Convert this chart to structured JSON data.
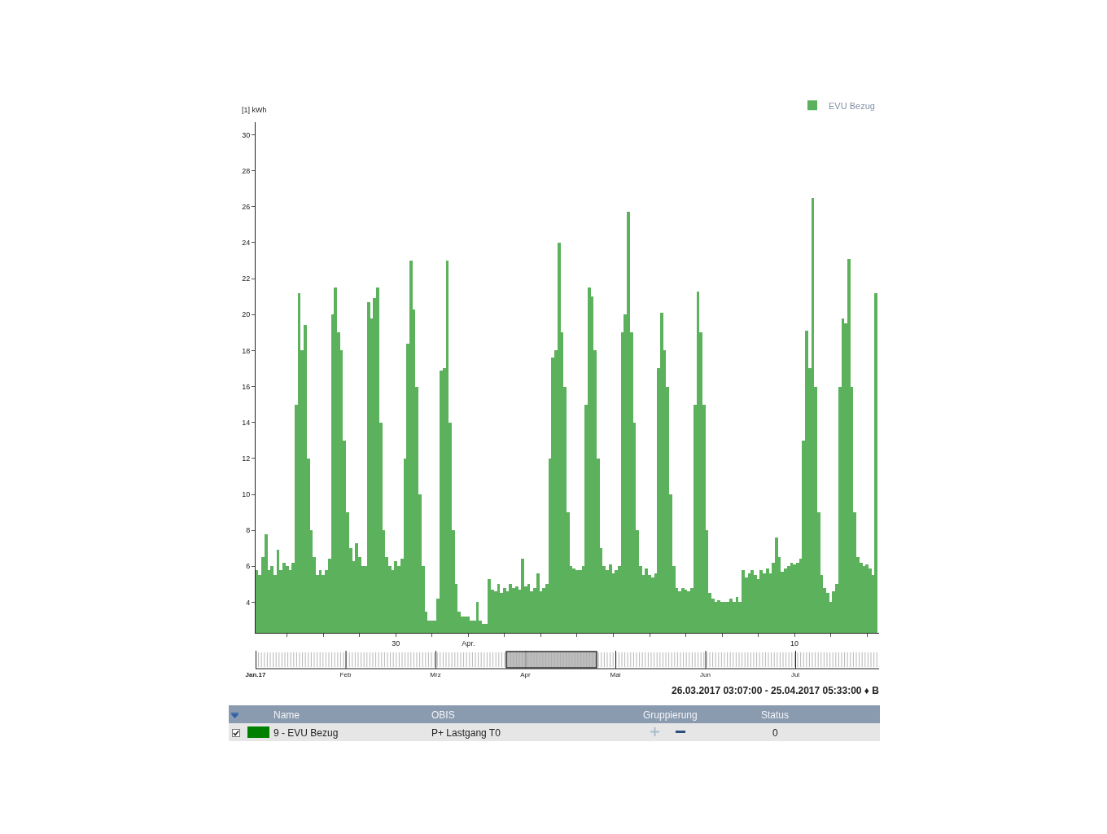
{
  "chart_data": [
    {
      "type": "bar",
      "ylabel": "[1] kWh",
      "legend": "top right",
      "ylim": [
        2.3,
        30.7
      ],
      "yticks": [
        4,
        6,
        8,
        10,
        12,
        14,
        16,
        18,
        20,
        22,
        24,
        26,
        28,
        30
      ],
      "xlim": [
        "2017-03-26T03:07",
        "2017-04-12T08:00"
      ],
      "xticks": [
        {
          "value": "2017-03-27",
          "label": null
        },
        {
          "value": "2017-03-28",
          "label": null
        },
        {
          "value": "2017-03-29",
          "label": null
        },
        {
          "value": "2017-03-30",
          "label": "30"
        },
        {
          "value": "2017-03-31",
          "label": null
        },
        {
          "value": "2017-04-01",
          "label": "Apr."
        },
        {
          "value": "2017-04-02",
          "label": null
        },
        {
          "value": "2017-04-03",
          "label": null
        },
        {
          "value": "2017-04-04",
          "label": null
        },
        {
          "value": "2017-04-05",
          "label": null
        },
        {
          "value": "2017-04-06",
          "label": null
        },
        {
          "value": "2017-04-07",
          "label": null
        },
        {
          "value": "2017-04-08",
          "label": null
        },
        {
          "value": "2017-04-09",
          "label": null
        },
        {
          "value": "2017-04-10",
          "label": "10"
        },
        {
          "value": "2017-04-11",
          "label": null
        },
        {
          "value": "2017-04-12",
          "label": null
        }
      ],
      "x": [
        "2017-03-26T04:00",
        "2017-03-26T06:00",
        "2017-03-26T08:00",
        "2017-03-26T10:00",
        "2017-03-26T12:00",
        "2017-03-26T14:00",
        "2017-03-26T16:00",
        "2017-03-26T18:00",
        "2017-03-26T20:00",
        "2017-03-26T22:00",
        "2017-03-27T00:00",
        "2017-03-27T02:00",
        "2017-03-27T04:00",
        "2017-03-27T06:00",
        "2017-03-27T08:00",
        "2017-03-27T10:00",
        "2017-03-27T12:00",
        "2017-03-27T14:00",
        "2017-03-27T16:00",
        "2017-03-27T18:00",
        "2017-03-27T20:00",
        "2017-03-27T22:00",
        "2017-03-28T00:00",
        "2017-03-28T02:00",
        "2017-03-28T04:00",
        "2017-03-28T06:00",
        "2017-03-28T08:00",
        "2017-03-28T10:00",
        "2017-03-28T12:00",
        "2017-03-28T14:00",
        "2017-03-28T16:00",
        "2017-03-28T18:00",
        "2017-03-28T20:00",
        "2017-03-28T22:00",
        "2017-03-29T00:00",
        "2017-03-29T02:00",
        "2017-03-29T04:00",
        "2017-03-29T06:00",
        "2017-03-29T08:00",
        "2017-03-29T10:00",
        "2017-03-29T12:00",
        "2017-03-29T14:00",
        "2017-03-29T16:00",
        "2017-03-29T18:00",
        "2017-03-29T20:00",
        "2017-03-29T22:00",
        "2017-03-30T00:00",
        "2017-03-30T02:00",
        "2017-03-30T04:00",
        "2017-03-30T06:00",
        "2017-03-30T08:00",
        "2017-03-30T10:00",
        "2017-03-30T12:00",
        "2017-03-30T14:00",
        "2017-03-30T16:00",
        "2017-03-30T18:00",
        "2017-03-30T20:00",
        "2017-03-30T22:00",
        "2017-03-31T00:00",
        "2017-03-31T02:00",
        "2017-03-31T04:00",
        "2017-03-31T06:00",
        "2017-03-31T08:00",
        "2017-03-31T10:00",
        "2017-03-31T12:00",
        "2017-03-31T14:00",
        "2017-03-31T16:00",
        "2017-03-31T18:00",
        "2017-03-31T20:00",
        "2017-03-31T22:00",
        "2017-04-01T00:00",
        "2017-04-01T02:00",
        "2017-04-01T04:00",
        "2017-04-01T06:00",
        "2017-04-01T08:00",
        "2017-04-01T10:00",
        "2017-04-01T12:00",
        "2017-04-01T14:00",
        "2017-04-01T16:00",
        "2017-04-01T18:00",
        "2017-04-01T20:00",
        "2017-04-01T22:00",
        "2017-04-02T00:00",
        "2017-04-02T02:00",
        "2017-04-02T04:00",
        "2017-04-02T06:00",
        "2017-04-02T08:00",
        "2017-04-02T10:00",
        "2017-04-02T12:00",
        "2017-04-02T14:00",
        "2017-04-02T16:00",
        "2017-04-02T18:00",
        "2017-04-02T20:00",
        "2017-04-02T22:00",
        "2017-04-03T00:00",
        "2017-04-03T02:00",
        "2017-04-03T04:00",
        "2017-04-03T06:00",
        "2017-04-03T08:00",
        "2017-04-03T10:00",
        "2017-04-03T12:00",
        "2017-04-03T14:00",
        "2017-04-03T16:00",
        "2017-04-03T18:00",
        "2017-04-03T20:00",
        "2017-04-03T22:00",
        "2017-04-04T00:00",
        "2017-04-04T02:00",
        "2017-04-04T04:00",
        "2017-04-04T06:00",
        "2017-04-04T08:00",
        "2017-04-04T10:00",
        "2017-04-04T12:00",
        "2017-04-04T14:00",
        "2017-04-04T16:00",
        "2017-04-04T18:00",
        "2017-04-04T20:00",
        "2017-04-04T22:00",
        "2017-04-05T00:00",
        "2017-04-05T02:00",
        "2017-04-05T04:00",
        "2017-04-05T06:00",
        "2017-04-05T08:00",
        "2017-04-05T10:00",
        "2017-04-05T12:00",
        "2017-04-05T14:00",
        "2017-04-05T16:00",
        "2017-04-05T18:00",
        "2017-04-05T20:00",
        "2017-04-05T22:00",
        "2017-04-06T00:00",
        "2017-04-06T02:00",
        "2017-04-06T04:00",
        "2017-04-06T06:00",
        "2017-04-06T08:00",
        "2017-04-06T10:00",
        "2017-04-06T12:00",
        "2017-04-06T14:00",
        "2017-04-06T16:00",
        "2017-04-06T18:00",
        "2017-04-06T20:00",
        "2017-04-06T22:00",
        "2017-04-07T00:00",
        "2017-04-07T02:00",
        "2017-04-07T04:00",
        "2017-04-07T06:00",
        "2017-04-07T08:00",
        "2017-04-07T10:00",
        "2017-04-07T12:00",
        "2017-04-07T14:00",
        "2017-04-07T16:00",
        "2017-04-07T18:00",
        "2017-04-07T20:00",
        "2017-04-07T22:00",
        "2017-04-08T00:00",
        "2017-04-08T02:00",
        "2017-04-08T04:00",
        "2017-04-08T06:00",
        "2017-04-08T08:00",
        "2017-04-08T10:00",
        "2017-04-08T12:00",
        "2017-04-08T14:00",
        "2017-04-08T16:00",
        "2017-04-08T18:00",
        "2017-04-08T20:00",
        "2017-04-08T22:00",
        "2017-04-09T00:00",
        "2017-04-09T02:00",
        "2017-04-09T04:00",
        "2017-04-09T06:00",
        "2017-04-09T08:00",
        "2017-04-09T10:00",
        "2017-04-09T12:00",
        "2017-04-09T14:00",
        "2017-04-09T16:00",
        "2017-04-09T18:00",
        "2017-04-09T20:00",
        "2017-04-09T22:00",
        "2017-04-10T00:00",
        "2017-04-10T02:00",
        "2017-04-10T04:00",
        "2017-04-10T06:00",
        "2017-04-10T08:00",
        "2017-04-10T10:00",
        "2017-04-10T12:00",
        "2017-04-10T14:00",
        "2017-04-10T16:00",
        "2017-04-10T18:00",
        "2017-04-10T20:00",
        "2017-04-10T22:00",
        "2017-04-11T00:00",
        "2017-04-11T02:00",
        "2017-04-11T04:00",
        "2017-04-11T06:00",
        "2017-04-11T08:00",
        "2017-04-11T10:00",
        "2017-04-11T12:00",
        "2017-04-11T14:00",
        "2017-04-11T16:00",
        "2017-04-11T18:00",
        "2017-04-11T20:00",
        "2017-04-11T22:00",
        "2017-04-12T00:00",
        "2017-04-12T02:00",
        "2017-04-12T04:00",
        "2017-04-12T06:00"
      ],
      "series": [
        {
          "name": "EVU Bezug",
          "color": "#5cb25c",
          "values": [
            5.8,
            5.5,
            6.5,
            7.8,
            5.8,
            6,
            5.5,
            6.9,
            5.8,
            6.2,
            6,
            5.8,
            6.2,
            15,
            21.2,
            18,
            19.4,
            12,
            8,
            6.5,
            5.5,
            5.8,
            5.5,
            5.8,
            6.4,
            20,
            21.5,
            19,
            18,
            13,
            9,
            7,
            6.3,
            7.3,
            6.5,
            6,
            6,
            20.7,
            19.8,
            20.9,
            21.5,
            14,
            8,
            6.5,
            6,
            5.8,
            6.3,
            6,
            6.4,
            12,
            18.4,
            23,
            20.3,
            16,
            10,
            6,
            3.5,
            3,
            3,
            3,
            4.2,
            16.9,
            17,
            23,
            14,
            8,
            5,
            3.5,
            3.2,
            3.2,
            3.2,
            3,
            3,
            4,
            3,
            2.8,
            2.8,
            5.3,
            4.7,
            4.6,
            5,
            4.5,
            4.8,
            4.6,
            5,
            4.8,
            4.9,
            4.7,
            6.4,
            4.9,
            5,
            4.6,
            4.8,
            5.6,
            4.6,
            4.8,
            5,
            12,
            17.6,
            18,
            24,
            19,
            16,
            9,
            6,
            5.9,
            5.8,
            5.8,
            6,
            15,
            21.5,
            21,
            18,
            12,
            7,
            6,
            5.8,
            6.1,
            5.6,
            5.8,
            6,
            19,
            20,
            25.7,
            19,
            14,
            8,
            6,
            5.5,
            5.9,
            5.5,
            5.4,
            5.6,
            17,
            20.1,
            18,
            16,
            10,
            6,
            4.8,
            4.6,
            4.8,
            4.7,
            4.6,
            4.8,
            15,
            21.3,
            19,
            15,
            8,
            4.5,
            4.2,
            4,
            4.1,
            4,
            4,
            4,
            4.2,
            4,
            4.3,
            4,
            5.8,
            5.4,
            5.6,
            5.8,
            5.5,
            5.3,
            5.8,
            5.6,
            5.9,
            5.6,
            6.2,
            7.6,
            6.5,
            5.7,
            5.9,
            6,
            6.2,
            6.1,
            6.2,
            6.4,
            13,
            19.1,
            17,
            26.5,
            16,
            9,
            5.5,
            4.8,
            4.5,
            4,
            4.6,
            5,
            16,
            19.8,
            19.5,
            23.1,
            16,
            9,
            6.5,
            6.2,
            6,
            6.1,
            5.9,
            5.5,
            21.2
          ]
        }
      ]
    },
    {
      "type": "other",
      "categories": [
        "Jan.17",
        "Feb",
        "Mrz",
        "Apr",
        "Mai",
        "Jun",
        "Jul"
      ],
      "annotations": [
        "26.03.2017 03:07:00 - 25.04.2017 05:33:00 ♦ B"
      ]
    },
    {
      "type": "other",
      "categories": [
        "Name",
        "OBIS",
        "Gruppierung",
        "Status"
      ],
      "annotations": [
        "9 - EVU Bezug",
        "P+ Lastgang T0",
        "0"
      ]
    }
  ]
}
